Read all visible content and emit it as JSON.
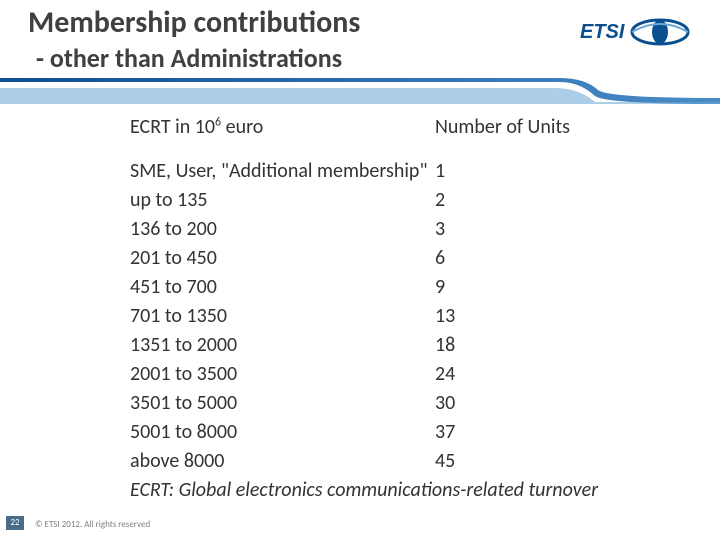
{
  "title": "Membership contributions",
  "subtitle": "- other than Administrations",
  "headers": {
    "left": "ECRT in 10⁶ euro",
    "right": "Number of Units"
  },
  "rows": [
    {
      "label": "SME, User, \"Additional membership\"",
      "units": "1"
    },
    {
      "label": "up to 135",
      "units": "2"
    },
    {
      "label": "136 to 200",
      "units": "3"
    },
    {
      "label": "201 to 450",
      "units": "6"
    },
    {
      "label": "451 to 700",
      "units": "9"
    },
    {
      "label": "701 to 1350",
      "units": "13"
    },
    {
      "label": "1351 to 2000",
      "units": "18"
    },
    {
      "label": "2001 to 3500",
      "units": "24"
    },
    {
      "label": "3501 to 5000",
      "units": "30"
    },
    {
      "label": "5001 to 8000",
      "units": "37"
    },
    {
      "label": "above 8000",
      "units": "45"
    }
  ],
  "footnote": "ECRT: Global electronics communications-related turnover",
  "page_number": "22",
  "copyright": "© ETSI 2012. All rights reserved",
  "logo_text": "ETSI",
  "colors": {
    "title_color": "#404040",
    "banner_dark": "#0a4f8f",
    "banner_light": "#6aa6d6",
    "footer_color": "#808080",
    "pagenum_bg": "#4a6b8a",
    "text": "#333333",
    "background": "#ffffff"
  }
}
